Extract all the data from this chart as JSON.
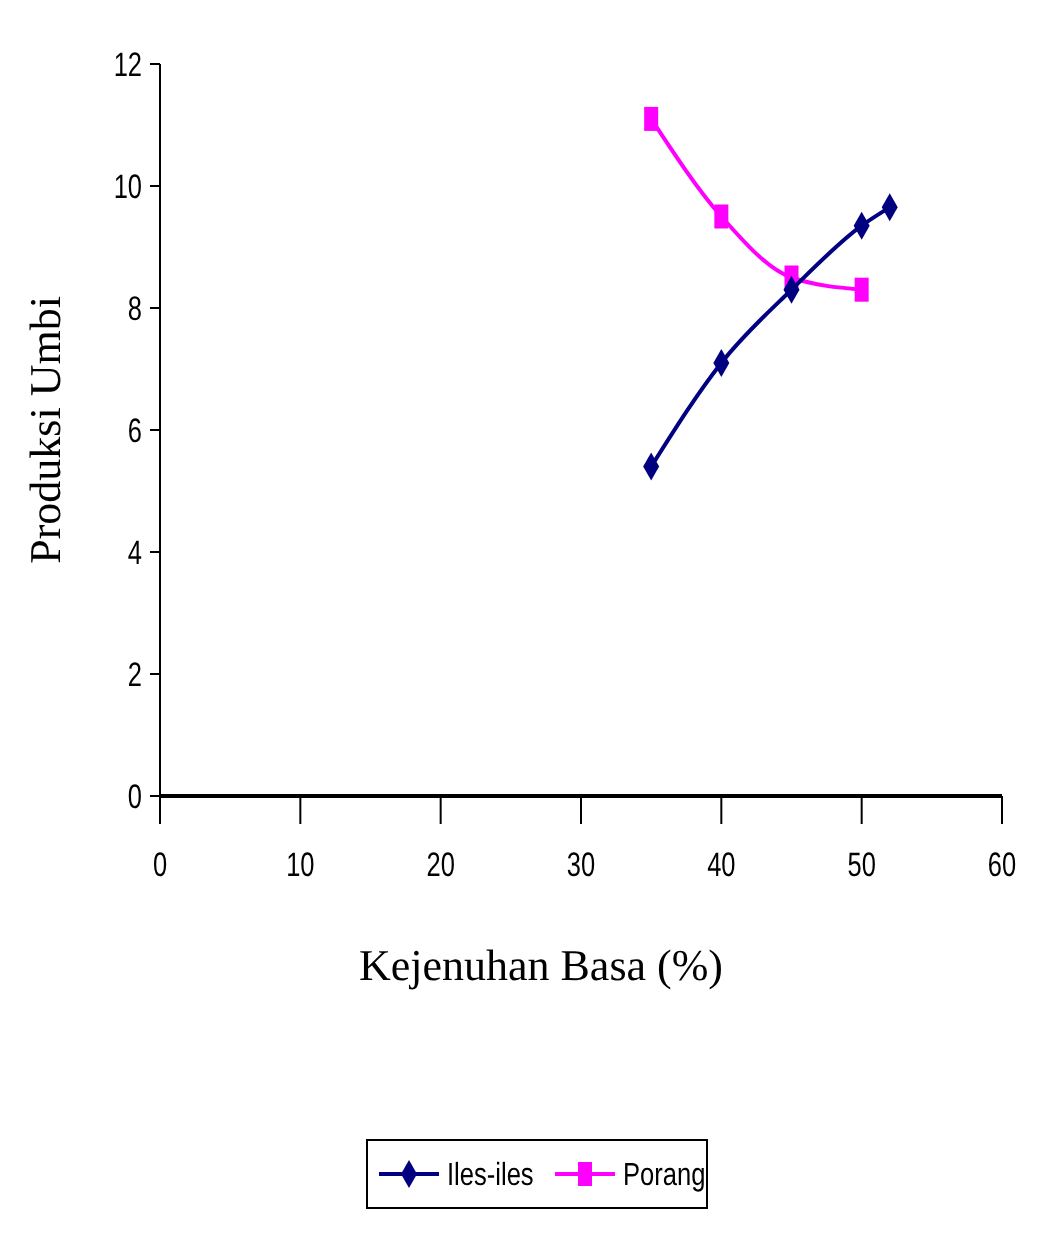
{
  "chart_data": {
    "type": "line",
    "xlabel": "Kejenuhan Basa (%)",
    "ylabel": "Produksi Umbi",
    "xlim": [
      0,
      60
    ],
    "xticks": [
      0,
      10,
      20,
      30,
      40,
      50,
      60
    ],
    "ylim": [
      0,
      12
    ],
    "yticks": [
      0,
      2,
      4,
      6,
      8,
      10,
      12
    ],
    "grid": false,
    "legend": "bottom",
    "series": [
      {
        "name": "Iles-iles",
        "color": "#000080",
        "marker": "diamond",
        "x": [
          35,
          40,
          45,
          50,
          52
        ],
        "values": [
          5.4,
          7.1,
          8.3,
          9.35,
          9.65
        ]
      },
      {
        "name": "Porang",
        "color": "#ff00ff",
        "marker": "square",
        "x": [
          35,
          40,
          45,
          50
        ],
        "values": [
          11.1,
          9.5,
          8.5,
          8.3
        ]
      }
    ]
  }
}
